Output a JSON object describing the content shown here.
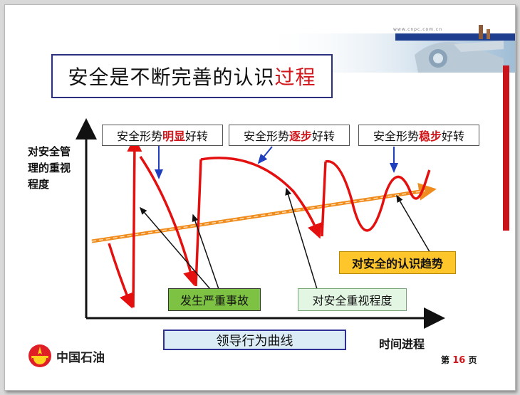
{
  "header": {
    "url_text": "www.cnpc.com.cn"
  },
  "title": {
    "text_main": "安全是不断完善的认识",
    "text_accent": "过程"
  },
  "y_axis_label": "对安全管理的重视程度",
  "x_axis_label": "时间进程",
  "callouts": [
    {
      "prefix": "安全形势",
      "highlight": "明显",
      "suffix": "好转"
    },
    {
      "prefix": "安全形势",
      "highlight": "逐步",
      "suffix": "好转"
    },
    {
      "prefix": "安全形势",
      "highlight": "稳步",
      "suffix": "好转"
    }
  ],
  "labels": {
    "accident": "发生严重事故",
    "importance": "对安全重视程度",
    "trend": "对安全的认识趋势",
    "curve_title": "领导行为曲线"
  },
  "footer": {
    "logo_text": "中国石油",
    "page_prefix": "第",
    "page_number": "16",
    "page_suffix": "页"
  },
  "colors": {
    "curve": "#e3100f",
    "trend": "#f08c1e",
    "title_border": "#2b2f7e",
    "callout_arrow": "#1f3fbf",
    "brand_red": "#c8141a"
  }
}
